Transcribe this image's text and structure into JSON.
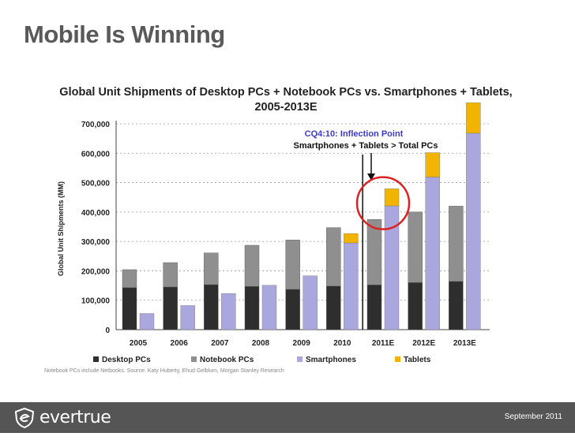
{
  "slide": {
    "title": "Mobile Is Winning",
    "footnote": "Notebook PCs include Netbooks. Source: Katy Huberty, Ehud Gelblum, Morgan Stanley Research",
    "footer_date": "September 2011",
    "logo_text": "evertrue"
  },
  "colors": {
    "desktop": "#2e2e2e",
    "notebook": "#8f8f8f",
    "smartphones": "#a9a7dd",
    "tablets": "#f2b400",
    "circle": "#dd2222",
    "annotation_blue": "#3b3bcc"
  },
  "chart_data": {
    "type": "bar",
    "title": "Global Unit Shipments of Desktop PCs + Notebook PCs vs. Smartphones + Tablets, 2005-2013E",
    "ylabel": "Global Unit Shipments (MM)",
    "xlabel": "",
    "ylim": [
      0,
      700000
    ],
    "yticks": [
      0,
      100000,
      200000,
      300000,
      400000,
      500000,
      600000,
      700000
    ],
    "ytick_labels": [
      "0",
      "100,000",
      "200,000",
      "300,000",
      "400,000",
      "500,000",
      "600,000",
      "700,000"
    ],
    "grid": true,
    "legend_position": "bottom",
    "categories": [
      "2005",
      "2006",
      "2007",
      "2008",
      "2009",
      "2010",
      "2011E",
      "2012E",
      "2013E"
    ],
    "stacks": [
      {
        "stack": "PCs",
        "series": [
          {
            "name": "Desktop PCs",
            "values": [
              143000,
              145000,
              153000,
              147000,
              137000,
              148000,
              152000,
              160000,
              164000
            ]
          },
          {
            "name": "Notebook PCs",
            "values": [
              61000,
              83000,
              108000,
              140000,
              168000,
              199000,
              223000,
              240000,
              256000
            ]
          }
        ]
      },
      {
        "stack": "Mobile",
        "series": [
          {
            "name": "Smartphones",
            "values": [
              55000,
              82000,
              123000,
              151000,
              183000,
              295000,
              421000,
              519000,
              668000
            ]
          },
          {
            "name": "Tablets",
            "values": [
              0,
              0,
              0,
              0,
              0,
              32000,
              58000,
              83000,
              104000
            ]
          }
        ]
      }
    ],
    "annotation": {
      "line1": "CQ4:10: Inflection Point",
      "line2": "Smartphones + Tablets > Total PCs"
    }
  }
}
